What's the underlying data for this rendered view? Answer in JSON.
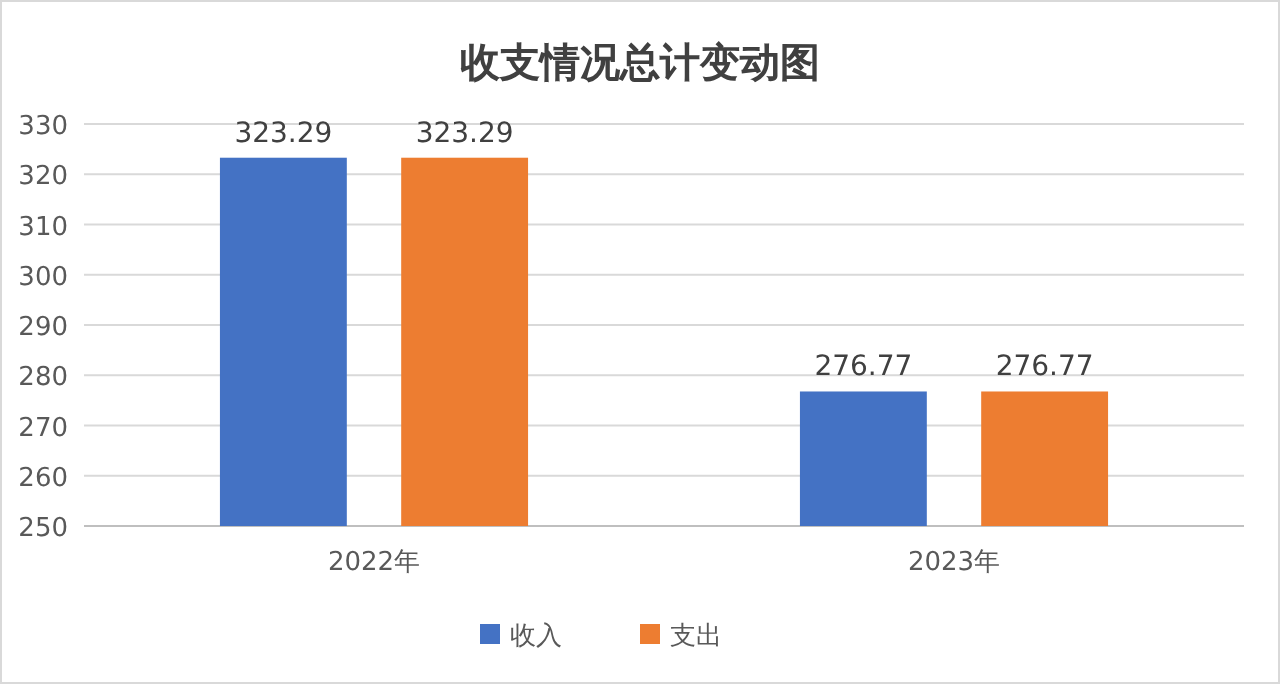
{
  "chart_data": {
    "type": "bar",
    "title": "收支情况总计变动图",
    "categories": [
      "2022年",
      "2023年"
    ],
    "series": [
      {
        "name": "收入",
        "color": "#4472c4",
        "values": [
          323.29,
          276.77
        ]
      },
      {
        "name": "支出",
        "color": "#ed7d31",
        "values": [
          323.29,
          276.77
        ]
      }
    ],
    "ylim": [
      250,
      330
    ],
    "yticks": [
      250,
      260,
      270,
      280,
      290,
      300,
      310,
      320,
      330
    ],
    "grid": "y",
    "legend": "bottom",
    "data_labels": true
  }
}
